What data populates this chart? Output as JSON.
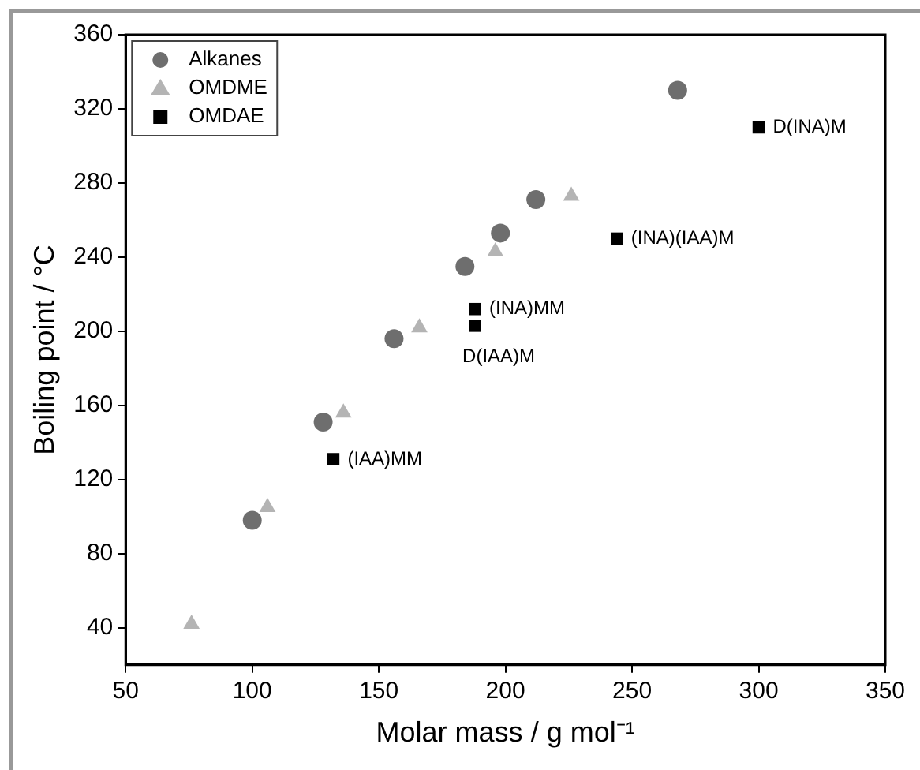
{
  "chart_data": {
    "type": "scatter",
    "xlabel": "Molar mass / g mol⁻¹",
    "ylabel": "Boiling point / °C",
    "xlim": [
      50,
      350
    ],
    "xticks": [
      50,
      100,
      150,
      200,
      250,
      300,
      350
    ],
    "ylim": [
      20,
      360
    ],
    "yticks": [
      40,
      80,
      120,
      160,
      200,
      240,
      280,
      320,
      360
    ],
    "grid": false,
    "legend": "top left",
    "series": [
      {
        "name": "Alkanes",
        "color": "#6e6e6e",
        "marker": "circle",
        "x": [
          100,
          128,
          156,
          184,
          198,
          212,
          268
        ],
        "values": [
          98,
          151,
          196,
          235,
          253,
          271,
          330
        ]
      },
      {
        "name": "OMDME",
        "color": "#b4b4b4",
        "marker": "triangle",
        "x": [
          76,
          106,
          136,
          166,
          196,
          226
        ],
        "values": [
          42,
          105,
          156,
          202,
          243,
          273
        ]
      },
      {
        "name": "OMDAE",
        "color": "#000000",
        "marker": "square",
        "x": [
          132,
          188,
          188,
          244,
          300
        ],
        "values": [
          131,
          212,
          203,
          250,
          310
        ]
      }
    ],
    "annotations": [
      {
        "text": "(IAA)MM",
        "x": 132,
        "y": 131
      },
      {
        "text": "(INA)MM",
        "x": 188,
        "y": 212
      },
      {
        "text": "D(IAA)M",
        "x": 188,
        "y": 203
      },
      {
        "text": "(INA)(IAA)M",
        "x": 244,
        "y": 250
      },
      {
        "text": "D(INA)M",
        "x": 300,
        "y": 310
      }
    ]
  }
}
